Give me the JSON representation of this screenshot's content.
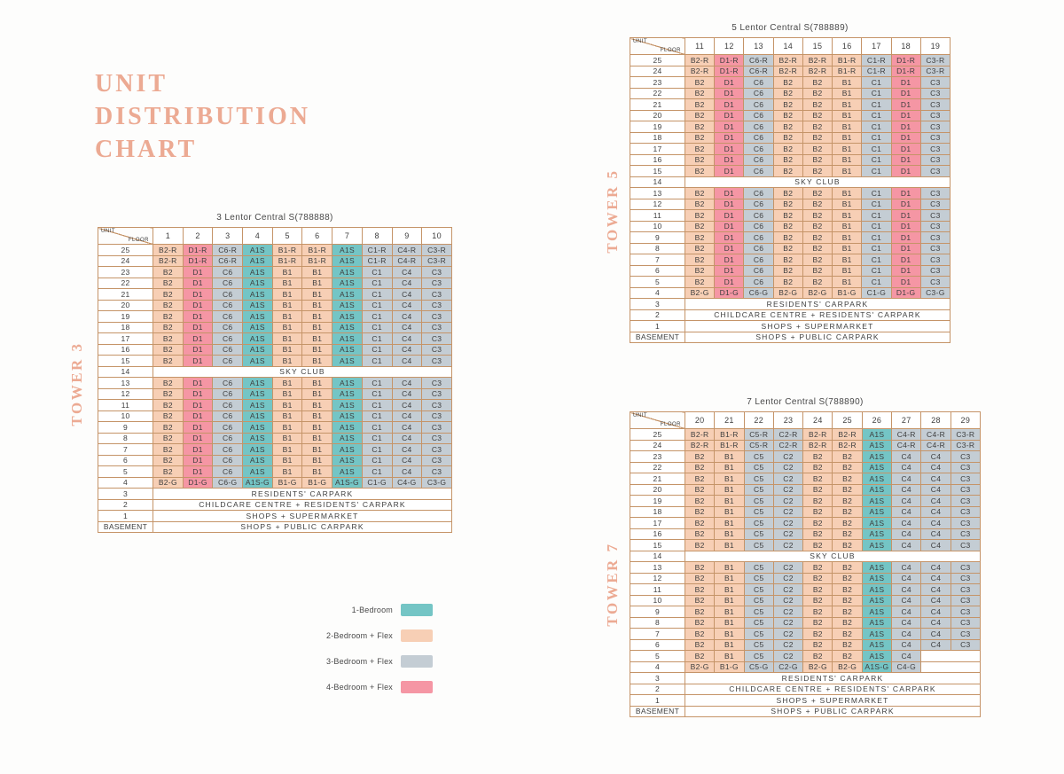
{
  "page": {
    "title_lines": [
      "UNIT",
      "DISTRIBUTION",
      "CHART"
    ],
    "accent_color": "#ecaa93",
    "table_border_color": "#c59468"
  },
  "corner": {
    "unit": "UNIT",
    "floor": "FLOOR"
  },
  "type_colors": {
    "A": "#74c5c5",
    "B": "#f7cfb5",
    "C": "#c4cdd4",
    "D": "#f596a4"
  },
  "legend": [
    {
      "label": "1-Bedroom",
      "color": "#74c5c5"
    },
    {
      "label": "2-Bedroom + Flex",
      "color": "#f7cfb5"
    },
    {
      "label": "3-Bedroom + Flex",
      "color": "#c4cdd4"
    },
    {
      "label": "4-Bedroom + Flex",
      "color": "#f596a4"
    }
  ],
  "towers": [
    {
      "tower_label": "TOWER 3",
      "title": "3 Lentor Central S(788888)",
      "columns": [
        "1",
        "2",
        "3",
        "4",
        "5",
        "6",
        "7",
        "8",
        "9",
        "10"
      ],
      "rows": [
        {
          "floor": "25",
          "cells": [
            "B2-R",
            "D1-R",
            "C6-R",
            "A1S",
            "B1-R",
            "B1-R",
            "A1S",
            "C1-R",
            "C4-R",
            "C3-R"
          ]
        },
        {
          "floor": "24",
          "cells": [
            "B2-R",
            "D1-R",
            "C6-R",
            "A1S",
            "B1-R",
            "B1-R",
            "A1S",
            "C1-R",
            "C4-R",
            "C3-R"
          ]
        },
        {
          "floor": "23",
          "cells": [
            "B2",
            "D1",
            "C6",
            "A1S",
            "B1",
            "B1",
            "A1S",
            "C1",
            "C4",
            "C3"
          ]
        },
        {
          "floor": "22",
          "cells": [
            "B2",
            "D1",
            "C6",
            "A1S",
            "B1",
            "B1",
            "A1S",
            "C1",
            "C4",
            "C3"
          ]
        },
        {
          "floor": "21",
          "cells": [
            "B2",
            "D1",
            "C6",
            "A1S",
            "B1",
            "B1",
            "A1S",
            "C1",
            "C4",
            "C3"
          ]
        },
        {
          "floor": "20",
          "cells": [
            "B2",
            "D1",
            "C6",
            "A1S",
            "B1",
            "B1",
            "A1S",
            "C1",
            "C4",
            "C3"
          ]
        },
        {
          "floor": "19",
          "cells": [
            "B2",
            "D1",
            "C6",
            "A1S",
            "B1",
            "B1",
            "A1S",
            "C1",
            "C4",
            "C3"
          ]
        },
        {
          "floor": "18",
          "cells": [
            "B2",
            "D1",
            "C6",
            "A1S",
            "B1",
            "B1",
            "A1S",
            "C1",
            "C4",
            "C3"
          ]
        },
        {
          "floor": "17",
          "cells": [
            "B2",
            "D1",
            "C6",
            "A1S",
            "B1",
            "B1",
            "A1S",
            "C1",
            "C4",
            "C3"
          ]
        },
        {
          "floor": "16",
          "cells": [
            "B2",
            "D1",
            "C6",
            "A1S",
            "B1",
            "B1",
            "A1S",
            "C1",
            "C4",
            "C3"
          ]
        },
        {
          "floor": "15",
          "cells": [
            "B2",
            "D1",
            "C6",
            "A1S",
            "B1",
            "B1",
            "A1S",
            "C1",
            "C4",
            "C3"
          ]
        },
        {
          "floor": "14",
          "span": "SKY CLUB"
        },
        {
          "floor": "13",
          "cells": [
            "B2",
            "D1",
            "C6",
            "A1S",
            "B1",
            "B1",
            "A1S",
            "C1",
            "C4",
            "C3"
          ]
        },
        {
          "floor": "12",
          "cells": [
            "B2",
            "D1",
            "C6",
            "A1S",
            "B1",
            "B1",
            "A1S",
            "C1",
            "C4",
            "C3"
          ]
        },
        {
          "floor": "11",
          "cells": [
            "B2",
            "D1",
            "C6",
            "A1S",
            "B1",
            "B1",
            "A1S",
            "C1",
            "C4",
            "C3"
          ]
        },
        {
          "floor": "10",
          "cells": [
            "B2",
            "D1",
            "C6",
            "A1S",
            "B1",
            "B1",
            "A1S",
            "C1",
            "C4",
            "C3"
          ]
        },
        {
          "floor": "9",
          "cells": [
            "B2",
            "D1",
            "C6",
            "A1S",
            "B1",
            "B1",
            "A1S",
            "C1",
            "C4",
            "C3"
          ]
        },
        {
          "floor": "8",
          "cells": [
            "B2",
            "D1",
            "C6",
            "A1S",
            "B1",
            "B1",
            "A1S",
            "C1",
            "C4",
            "C3"
          ]
        },
        {
          "floor": "7",
          "cells": [
            "B2",
            "D1",
            "C6",
            "A1S",
            "B1",
            "B1",
            "A1S",
            "C1",
            "C4",
            "C3"
          ]
        },
        {
          "floor": "6",
          "cells": [
            "B2",
            "D1",
            "C6",
            "A1S",
            "B1",
            "B1",
            "A1S",
            "C1",
            "C4",
            "C3"
          ]
        },
        {
          "floor": "5",
          "cells": [
            "B2",
            "D1",
            "C6",
            "A1S",
            "B1",
            "B1",
            "A1S",
            "C1",
            "C4",
            "C3"
          ]
        },
        {
          "floor": "4",
          "cells": [
            "B2-G",
            "D1-G",
            "C6-G",
            "A1S-G",
            "B1-G",
            "B1-G",
            "A1S-G",
            "C1-G",
            "C4-G",
            "C3-G"
          ]
        },
        {
          "floor": "3",
          "span": "RESIDENTS' CARPARK"
        },
        {
          "floor": "2",
          "span": "CHILDCARE CENTRE + RESIDENTS' CARPARK"
        },
        {
          "floor": "1",
          "span": "SHOPS + SUPERMARKET"
        },
        {
          "floor": "BASEMENT",
          "span": "SHOPS + PUBLIC CARPARK"
        }
      ]
    },
    {
      "tower_label": "TOWER 5",
      "title": "5 Lentor Central S(788889)",
      "columns": [
        "11",
        "12",
        "13",
        "14",
        "15",
        "16",
        "17",
        "18",
        "19"
      ],
      "rows": [
        {
          "floor": "25",
          "cells": [
            "B2-R",
            "D1-R",
            "C6-R",
            "B2-R",
            "B2-R",
            "B1-R",
            "C1-R",
            "D1-R",
            "C3-R"
          ]
        },
        {
          "floor": "24",
          "cells": [
            "B2-R",
            "D1-R",
            "C6-R",
            "B2-R",
            "B2-R",
            "B1-R",
            "C1-R",
            "D1-R",
            "C3-R"
          ]
        },
        {
          "floor": "23",
          "cells": [
            "B2",
            "D1",
            "C6",
            "B2",
            "B2",
            "B1",
            "C1",
            "D1",
            "C3"
          ]
        },
        {
          "floor": "22",
          "cells": [
            "B2",
            "D1",
            "C6",
            "B2",
            "B2",
            "B1",
            "C1",
            "D1",
            "C3"
          ]
        },
        {
          "floor": "21",
          "cells": [
            "B2",
            "D1",
            "C6",
            "B2",
            "B2",
            "B1",
            "C1",
            "D1",
            "C3"
          ]
        },
        {
          "floor": "20",
          "cells": [
            "B2",
            "D1",
            "C6",
            "B2",
            "B2",
            "B1",
            "C1",
            "D1",
            "C3"
          ]
        },
        {
          "floor": "19",
          "cells": [
            "B2",
            "D1",
            "C6",
            "B2",
            "B2",
            "B1",
            "C1",
            "D1",
            "C3"
          ]
        },
        {
          "floor": "18",
          "cells": [
            "B2",
            "D1",
            "C6",
            "B2",
            "B2",
            "B1",
            "C1",
            "D1",
            "C3"
          ]
        },
        {
          "floor": "17",
          "cells": [
            "B2",
            "D1",
            "C6",
            "B2",
            "B2",
            "B1",
            "C1",
            "D1",
            "C3"
          ]
        },
        {
          "floor": "16",
          "cells": [
            "B2",
            "D1",
            "C6",
            "B2",
            "B2",
            "B1",
            "C1",
            "D1",
            "C3"
          ]
        },
        {
          "floor": "15",
          "cells": [
            "B2",
            "D1",
            "C6",
            "B2",
            "B2",
            "B1",
            "C1",
            "D1",
            "C3"
          ]
        },
        {
          "floor": "14",
          "span": "SKY CLUB"
        },
        {
          "floor": "13",
          "cells": [
            "B2",
            "D1",
            "C6",
            "B2",
            "B2",
            "B1",
            "C1",
            "D1",
            "C3"
          ]
        },
        {
          "floor": "12",
          "cells": [
            "B2",
            "D1",
            "C6",
            "B2",
            "B2",
            "B1",
            "C1",
            "D1",
            "C3"
          ]
        },
        {
          "floor": "11",
          "cells": [
            "B2",
            "D1",
            "C6",
            "B2",
            "B2",
            "B1",
            "C1",
            "D1",
            "C3"
          ]
        },
        {
          "floor": "10",
          "cells": [
            "B2",
            "D1",
            "C6",
            "B2",
            "B2",
            "B1",
            "C1",
            "D1",
            "C3"
          ]
        },
        {
          "floor": "9",
          "cells": [
            "B2",
            "D1",
            "C6",
            "B2",
            "B2",
            "B1",
            "C1",
            "D1",
            "C3"
          ]
        },
        {
          "floor": "8",
          "cells": [
            "B2",
            "D1",
            "C6",
            "B2",
            "B2",
            "B1",
            "C1",
            "D1",
            "C3"
          ]
        },
        {
          "floor": "7",
          "cells": [
            "B2",
            "D1",
            "C6",
            "B2",
            "B2",
            "B1",
            "C1",
            "D1",
            "C3"
          ]
        },
        {
          "floor": "6",
          "cells": [
            "B2",
            "D1",
            "C6",
            "B2",
            "B2",
            "B1",
            "C1",
            "D1",
            "C3"
          ]
        },
        {
          "floor": "5",
          "cells": [
            "B2",
            "D1",
            "C6",
            "B2",
            "B2",
            "B1",
            "C1",
            "D1",
            "C3"
          ]
        },
        {
          "floor": "4",
          "cells": [
            "B2-G",
            "D1-G",
            "C6-G",
            "B2-G",
            "B2-G",
            "B1-G",
            "C1-G",
            "D1-G",
            "C3-G"
          ]
        },
        {
          "floor": "3",
          "span": "RESIDENTS' CARPARK"
        },
        {
          "floor": "2",
          "span": "CHILDCARE CENTRE + RESIDENTS' CARPARK"
        },
        {
          "floor": "1",
          "span": "SHOPS + SUPERMARKET"
        },
        {
          "floor": "BASEMENT",
          "span": "SHOPS + PUBLIC CARPARK"
        }
      ]
    },
    {
      "tower_label": "TOWER 7",
      "title": "7 Lentor Central S(788890)",
      "columns": [
        "20",
        "21",
        "22",
        "23",
        "24",
        "25",
        "26",
        "27",
        "28",
        "29"
      ],
      "rows": [
        {
          "floor": "25",
          "cells": [
            "B2-R",
            "B1-R",
            "C5-R",
            "C2-R",
            "B2-R",
            "B2-R",
            "A1S",
            "C4-R",
            "C4-R",
            "C3-R"
          ]
        },
        {
          "floor": "24",
          "cells": [
            "B2-R",
            "B1-R",
            "C5-R",
            "C2-R",
            "B2-R",
            "B2-R",
            "A1S",
            "C4-R",
            "C4-R",
            "C3-R"
          ]
        },
        {
          "floor": "23",
          "cells": [
            "B2",
            "B1",
            "C5",
            "C2",
            "B2",
            "B2",
            "A1S",
            "C4",
            "C4",
            "C3"
          ]
        },
        {
          "floor": "22",
          "cells": [
            "B2",
            "B1",
            "C5",
            "C2",
            "B2",
            "B2",
            "A1S",
            "C4",
            "C4",
            "C3"
          ]
        },
        {
          "floor": "21",
          "cells": [
            "B2",
            "B1",
            "C5",
            "C2",
            "B2",
            "B2",
            "A1S",
            "C4",
            "C4",
            "C3"
          ]
        },
        {
          "floor": "20",
          "cells": [
            "B2",
            "B1",
            "C5",
            "C2",
            "B2",
            "B2",
            "A1S",
            "C4",
            "C4",
            "C3"
          ]
        },
        {
          "floor": "19",
          "cells": [
            "B2",
            "B1",
            "C5",
            "C2",
            "B2",
            "B2",
            "A1S",
            "C4",
            "C4",
            "C3"
          ]
        },
        {
          "floor": "18",
          "cells": [
            "B2",
            "B1",
            "C5",
            "C2",
            "B2",
            "B2",
            "A1S",
            "C4",
            "C4",
            "C3"
          ]
        },
        {
          "floor": "17",
          "cells": [
            "B2",
            "B1",
            "C5",
            "C2",
            "B2",
            "B2",
            "A1S",
            "C4",
            "C4",
            "C3"
          ]
        },
        {
          "floor": "16",
          "cells": [
            "B2",
            "B1",
            "C5",
            "C2",
            "B2",
            "B2",
            "A1S",
            "C4",
            "C4",
            "C3"
          ]
        },
        {
          "floor": "15",
          "cells": [
            "B2",
            "B1",
            "C5",
            "C2",
            "B2",
            "B2",
            "A1S",
            "C4",
            "C4",
            "C3"
          ]
        },
        {
          "floor": "14",
          "span": "SKY CLUB"
        },
        {
          "floor": "13",
          "cells": [
            "B2",
            "B1",
            "C5",
            "C2",
            "B2",
            "B2",
            "A1S",
            "C4",
            "C4",
            "C3"
          ]
        },
        {
          "floor": "12",
          "cells": [
            "B2",
            "B1",
            "C5",
            "C2",
            "B2",
            "B2",
            "A1S",
            "C4",
            "C4",
            "C3"
          ]
        },
        {
          "floor": "11",
          "cells": [
            "B2",
            "B1",
            "C5",
            "C2",
            "B2",
            "B2",
            "A1S",
            "C4",
            "C4",
            "C3"
          ]
        },
        {
          "floor": "10",
          "cells": [
            "B2",
            "B1",
            "C5",
            "C2",
            "B2",
            "B2",
            "A1S",
            "C4",
            "C4",
            "C3"
          ]
        },
        {
          "floor": "9",
          "cells": [
            "B2",
            "B1",
            "C5",
            "C2",
            "B2",
            "B2",
            "A1S",
            "C4",
            "C4",
            "C3"
          ]
        },
        {
          "floor": "8",
          "cells": [
            "B2",
            "B1",
            "C5",
            "C2",
            "B2",
            "B2",
            "A1S",
            "C4",
            "C4",
            "C3"
          ]
        },
        {
          "floor": "7",
          "cells": [
            "B2",
            "B1",
            "C5",
            "C2",
            "B2",
            "B2",
            "A1S",
            "C4",
            "C4",
            "C3"
          ]
        },
        {
          "floor": "6",
          "cells": [
            "B2",
            "B1",
            "C5",
            "C2",
            "B2",
            "B2",
            "A1S",
            "C4",
            "C4",
            "C3"
          ]
        },
        {
          "floor": "5",
          "cells": [
            "B2",
            "B1",
            "C5",
            "C2",
            "B2",
            "B2",
            "A1S",
            "C4"
          ]
        },
        {
          "floor": "4",
          "cells": [
            "B2-G",
            "B1-G",
            "C5-G",
            "C2-G",
            "B2-G",
            "B2-G",
            "A1S-G",
            "C4-G"
          ]
        },
        {
          "floor": "3",
          "span": "RESIDENTS' CARPARK"
        },
        {
          "floor": "2",
          "span": "CHILDCARE CENTRE + RESIDENTS' CARPARK"
        },
        {
          "floor": "1",
          "span": "SHOPS + SUPERMARKET"
        },
        {
          "floor": "BASEMENT",
          "span": "SHOPS + PUBLIC CARPARK"
        }
      ]
    }
  ]
}
